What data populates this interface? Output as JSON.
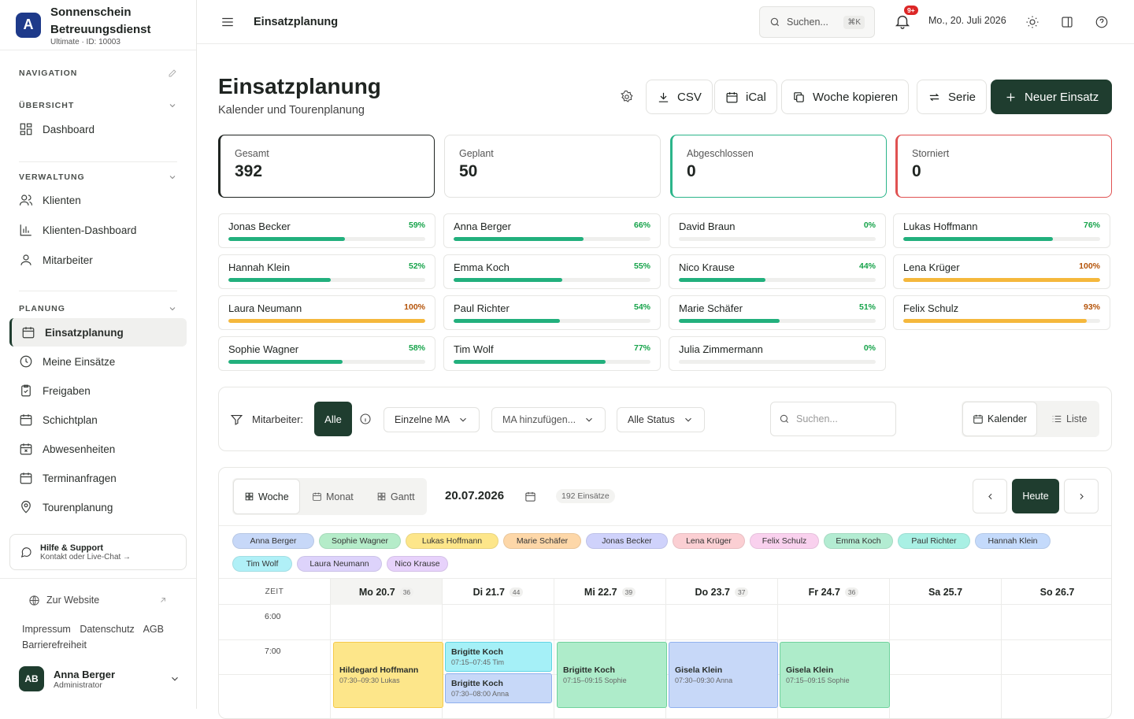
{
  "brand": {
    "logo": "A",
    "name": "Sonnenschein Betreuungsdienst",
    "sub": "Ultimate · ID: 10003"
  },
  "sidebar": {
    "nav_heading": "NAVIGATION",
    "sections": [
      {
        "title": "ÜBERSICHT",
        "items": [
          {
            "label": "Dashboard",
            "icon": "dashboard-icon"
          }
        ]
      },
      {
        "title": "VERWALTUNG",
        "items": [
          {
            "label": "Klienten",
            "icon": "users-icon"
          },
          {
            "label": "Klienten-Dashboard",
            "icon": "bar-chart-icon"
          },
          {
            "label": "Mitarbeiter",
            "icon": "user-icon"
          }
        ]
      },
      {
        "title": "PLANUNG",
        "items": [
          {
            "label": "Einsatzplanung",
            "icon": "calendar-icon",
            "active": true
          },
          {
            "label": "Meine Einsätze",
            "icon": "clock-icon"
          },
          {
            "label": "Freigaben",
            "icon": "clipboard-check-icon"
          },
          {
            "label": "Schichtplan",
            "icon": "calendar-icon"
          },
          {
            "label": "Abwesenheiten",
            "icon": "calendar-x-icon"
          },
          {
            "label": "Terminanfragen",
            "icon": "calendar-icon"
          },
          {
            "label": "Tourenplanung",
            "icon": "map-pin-icon"
          }
        ]
      }
    ],
    "help": {
      "title": "Hilfe & Support",
      "sub": "Kontakt oder Live-Chat →"
    },
    "website": "Zur Website",
    "legal": [
      "Impressum",
      "Datenschutz",
      "AGB",
      "Barrierefreiheit"
    ],
    "user": {
      "initials": "AB",
      "name": "Anna Berger",
      "role": "Administrator"
    }
  },
  "topbar": {
    "title": "Einsatzplanung",
    "search": "Suchen...",
    "kbd": "⌘K",
    "badge": "9+",
    "date": "Mo., 20. Juli 2026"
  },
  "header": {
    "title": "Einsatzplanung",
    "subtitle": "Kalender und Tourenplanung",
    "buttons": {
      "csv": "CSV",
      "ical": "iCal",
      "copy_week": "Woche kopieren",
      "series": "Serie",
      "new": "Neuer Einsatz"
    }
  },
  "stats": [
    {
      "label": "Gesamt",
      "value": "392",
      "color": "#1f2421"
    },
    {
      "label": "Geplant",
      "value": "50",
      "color": "#e2e2df"
    },
    {
      "label": "Abgeschlossen",
      "value": "0",
      "color": "#2bb58a"
    },
    {
      "label": "Storniert",
      "value": "0",
      "color": "#e05252"
    }
  ],
  "employees": [
    {
      "name": "Jonas Becker",
      "pct": "59%",
      "value": 59
    },
    {
      "name": "Anna Berger",
      "pct": "66%",
      "value": 66
    },
    {
      "name": "David Braun",
      "pct": "0%",
      "value": 0
    },
    {
      "name": "Lukas Hoffmann",
      "pct": "76%",
      "value": 76
    },
    {
      "name": "Hannah Klein",
      "pct": "52%",
      "value": 52
    },
    {
      "name": "Emma Koch",
      "pct": "55%",
      "value": 55
    },
    {
      "name": "Nico Krause",
      "pct": "44%",
      "value": 44
    },
    {
      "name": "Lena Krüger",
      "pct": "100%",
      "value": 100,
      "warn": true
    },
    {
      "name": "Laura Neumann",
      "pct": "100%",
      "value": 100,
      "warn": true
    },
    {
      "name": "Paul Richter",
      "pct": "54%",
      "value": 54
    },
    {
      "name": "Marie Schäfer",
      "pct": "51%",
      "value": 51
    },
    {
      "name": "Felix Schulz",
      "pct": "93%",
      "value": 93,
      "warn": true
    },
    {
      "name": "Sophie Wagner",
      "pct": "58%",
      "value": 58
    },
    {
      "name": "Tim Wolf",
      "pct": "77%",
      "value": 77
    },
    {
      "name": "Julia Zimmermann",
      "pct": "0%",
      "value": 0
    }
  ],
  "filter": {
    "label": "Mitarbeiter:",
    "all": "Alle",
    "single": "Einzelne MA",
    "add": "MA hinzufügen...",
    "status": "Alle Status",
    "search_placeholder": "Suchen...",
    "view_calendar": "Kalender",
    "view_list": "Liste"
  },
  "calendar": {
    "tabs": [
      "Woche",
      "Monat",
      "Gantt"
    ],
    "date": "20.07.2026",
    "count": "192 Einsätze",
    "today": "Heute",
    "legend": [
      {
        "name": "Anna Berger",
        "color": "#c7d8f8"
      },
      {
        "name": "Sophie Wagner",
        "color": "#b5ecc9"
      },
      {
        "name": "Lukas Hoffmann",
        "color": "#fde68a"
      },
      {
        "name": "Marie Schäfer",
        "color": "#fdd7a8"
      },
      {
        "name": "Jonas Becker",
        "color": "#cfd2fb"
      },
      {
        "name": "Lena Krüger",
        "color": "#fbcfd3"
      },
      {
        "name": "Felix Schulz",
        "color": "#f9d1ee"
      },
      {
        "name": "Emma Koch",
        "color": "#b3ecd2"
      },
      {
        "name": "Paul Richter",
        "color": "#a9f0e4"
      },
      {
        "name": "Hannah Klein",
        "color": "#c4dafb"
      },
      {
        "name": "Tim Wolf",
        "color": "#b0f0f7"
      },
      {
        "name": "Laura Neumann",
        "color": "#ddd3fb"
      },
      {
        "name": "Nico Krause",
        "color": "#e7d2fb"
      }
    ],
    "zeit": "ZEIT",
    "days": [
      {
        "label": "Mo 20.7",
        "count": "36"
      },
      {
        "label": "Di 21.7",
        "count": "44"
      },
      {
        "label": "Mi 22.7",
        "count": "39"
      },
      {
        "label": "Do 23.7",
        "count": "37"
      },
      {
        "label": "Fr 24.7",
        "count": "36"
      },
      {
        "label": "Sa 25.7",
        "count": ""
      },
      {
        "label": "So 26.7",
        "count": ""
      }
    ],
    "times": [
      "6:00",
      "7:00"
    ],
    "events": [
      {
        "title": "Hildegard Hoffmann",
        "sub": "07:30–09:30 Lukas",
        "color": "#fde68a",
        "border": "#f5c94a"
      },
      {
        "title": "Brigitte Koch",
        "sub": "07:15–07:45 Tim",
        "color": "#a5f0f7",
        "border": "#5fd4e3"
      },
      {
        "title": "Brigitte Koch",
        "sub": "07:30–08:00 Anna",
        "color": "#c7d8f8",
        "border": "#8fb0ee"
      },
      {
        "title": "Brigitte Koch",
        "sub": "07:15–09:15 Sophie",
        "color": "#aeecca",
        "border": "#6fd29c"
      },
      {
        "title": "Gisela Klein",
        "sub": "07:30–09:30 Anna",
        "color": "#c7d8f8",
        "border": "#8fb0ee"
      },
      {
        "title": "Gisela Klein",
        "sub": "07:15–09:15 Sophie",
        "color": "#aeecca",
        "border": "#6fd29c"
      }
    ]
  }
}
